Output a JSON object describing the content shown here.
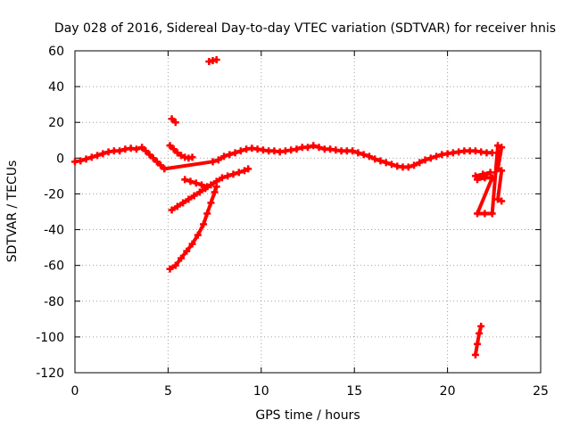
{
  "chart_data": {
    "type": "scatter",
    "title": "Day 028 of 2016, Sidereal Day-to-day VTEC variation (SDTVAR) for receiver hnis",
    "xlabel": "GPS time / hours",
    "ylabel": "SDTVAR / TECUs",
    "xlim": [
      0,
      25
    ],
    "ylim": [
      -120,
      60
    ],
    "xticks": [
      0,
      5,
      10,
      15,
      20,
      25
    ],
    "xtick_labels": [
      "0",
      "5",
      "10",
      "15",
      "20",
      "25"
    ],
    "yticks": [
      -120,
      -100,
      -80,
      -60,
      -40,
      -20,
      0,
      20,
      40,
      60
    ],
    "ytick_labels": [
      "-120",
      "-100",
      "-80",
      "-60",
      "-40",
      "-20",
      "0",
      "20",
      "40",
      "60"
    ],
    "grid": true,
    "marker_color": "#ff0000",
    "series": [
      {
        "name": "main-band",
        "points": [
          [
            0.0,
            -2
          ],
          [
            0.3,
            -1.5
          ],
          [
            0.6,
            -0.5
          ],
          [
            0.9,
            0.5
          ],
          [
            1.2,
            1.5
          ],
          [
            1.5,
            2.5
          ],
          [
            1.8,
            3.5
          ],
          [
            2.1,
            4
          ],
          [
            2.4,
            4
          ],
          [
            2.7,
            5
          ],
          [
            3.0,
            5.5
          ],
          [
            3.3,
            5
          ],
          [
            3.6,
            6
          ],
          [
            3.8,
            4
          ],
          [
            4.0,
            2
          ],
          [
            4.2,
            0
          ],
          [
            4.4,
            -2
          ],
          [
            4.6,
            -4
          ],
          [
            4.8,
            -6
          ],
          [
            7.4,
            -2
          ],
          [
            7.7,
            -1
          ],
          [
            8.0,
            1
          ],
          [
            8.3,
            2
          ],
          [
            8.6,
            3
          ],
          [
            8.9,
            4
          ],
          [
            9.2,
            5
          ],
          [
            9.5,
            5.5
          ],
          [
            9.8,
            5
          ],
          [
            10.1,
            4.5
          ],
          [
            10.4,
            4
          ],
          [
            10.7,
            4
          ],
          [
            11.0,
            3.5
          ],
          [
            11.3,
            4
          ],
          [
            11.6,
            4.5
          ],
          [
            11.9,
            5
          ],
          [
            12.2,
            6
          ],
          [
            12.5,
            6
          ],
          [
            12.8,
            7
          ],
          [
            13.1,
            6
          ],
          [
            13.4,
            5
          ],
          [
            13.7,
            5
          ],
          [
            14.0,
            4.5
          ],
          [
            14.3,
            4
          ],
          [
            14.6,
            4
          ],
          [
            14.9,
            4
          ],
          [
            15.2,
            3
          ],
          [
            15.5,
            2
          ],
          [
            15.8,
            1
          ],
          [
            16.1,
            -0.5
          ],
          [
            16.4,
            -1.5
          ],
          [
            16.7,
            -2.5
          ],
          [
            17.0,
            -3.5
          ],
          [
            17.3,
            -4.5
          ],
          [
            17.6,
            -5
          ],
          [
            17.9,
            -5
          ],
          [
            18.2,
            -4
          ],
          [
            18.5,
            -2.5
          ],
          [
            18.8,
            -1
          ],
          [
            19.1,
            0
          ],
          [
            19.4,
            1
          ],
          [
            19.7,
            2
          ],
          [
            20.0,
            2.5
          ],
          [
            20.3,
            3
          ],
          [
            20.6,
            3.5
          ],
          [
            20.9,
            4
          ],
          [
            21.2,
            4
          ],
          [
            21.5,
            4
          ],
          [
            21.8,
            3.5
          ],
          [
            22.1,
            3
          ],
          [
            22.4,
            3
          ]
        ]
      },
      {
        "name": "arc-5-to-6",
        "points": [
          [
            5.1,
            7
          ],
          [
            5.3,
            5
          ],
          [
            5.5,
            3
          ],
          [
            5.7,
            1.5
          ],
          [
            5.9,
            0.5
          ],
          [
            6.1,
            0
          ],
          [
            6.3,
            0.5
          ]
        ]
      },
      {
        "name": "outlier-high-5",
        "points": [
          [
            5.2,
            22
          ],
          [
            5.4,
            20
          ]
        ]
      },
      {
        "name": "outlier-high-7",
        "points": [
          [
            7.2,
            54
          ],
          [
            7.4,
            54.5
          ],
          [
            7.6,
            55
          ]
        ]
      },
      {
        "name": "diagonal-upper",
        "points": [
          [
            5.2,
            -29
          ],
          [
            5.5,
            -27
          ],
          [
            5.8,
            -25
          ],
          [
            6.1,
            -23
          ],
          [
            6.4,
            -21
          ],
          [
            6.7,
            -19
          ],
          [
            7.0,
            -17
          ],
          [
            7.3,
            -15
          ],
          [
            7.6,
            -13
          ],
          [
            7.9,
            -11
          ],
          [
            8.2,
            -10
          ],
          [
            8.5,
            -9
          ],
          [
            8.8,
            -8
          ],
          [
            9.1,
            -7
          ],
          [
            9.3,
            -6
          ]
        ]
      },
      {
        "name": "short-segment-6-7",
        "points": [
          [
            5.9,
            -12
          ],
          [
            6.2,
            -13
          ],
          [
            6.5,
            -14
          ],
          [
            6.8,
            -15
          ],
          [
            7.1,
            -16
          ]
        ]
      },
      {
        "name": "steep-curve",
        "points": [
          [
            5.1,
            -62
          ],
          [
            5.4,
            -60
          ],
          [
            5.7,
            -56
          ],
          [
            6.0,
            -52
          ],
          [
            6.3,
            -48
          ],
          [
            6.6,
            -43
          ],
          [
            6.9,
            -37
          ],
          [
            7.1,
            -31
          ],
          [
            7.3,
            -25
          ],
          [
            7.5,
            -19
          ],
          [
            7.6,
            -16
          ]
        ]
      },
      {
        "name": "late-fragments",
        "points": [
          [
            21.5,
            -10
          ],
          [
            21.9,
            -9
          ],
          [
            22.3,
            -8
          ],
          [
            21.6,
            -12
          ],
          [
            22.0,
            -11
          ],
          [
            22.4,
            -11
          ],
          [
            21.6,
            -31
          ],
          [
            22.0,
            -31
          ],
          [
            22.4,
            -31
          ],
          [
            22.7,
            7
          ],
          [
            22.9,
            6
          ],
          [
            22.7,
            -6
          ],
          [
            22.9,
            -7
          ],
          [
            22.7,
            -23
          ],
          [
            22.9,
            -24
          ]
        ]
      },
      {
        "name": "late-drop",
        "points": [
          [
            21.5,
            -110
          ],
          [
            21.6,
            -104
          ],
          [
            21.7,
            -98
          ],
          [
            21.8,
            -94
          ]
        ]
      }
    ]
  }
}
